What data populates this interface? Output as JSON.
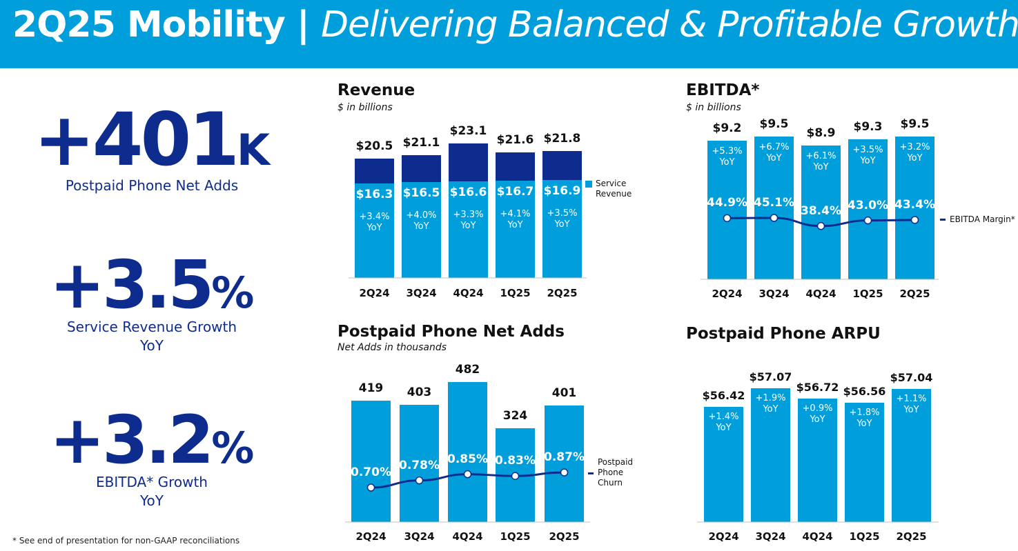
{
  "header": {
    "title_main": "2Q25 Mobility | ",
    "title_sub": "Delivering Balanced & Profitable Growth"
  },
  "kpis": [
    {
      "value": "+401",
      "unit": "K",
      "label": "Postpaid Phone Net Adds",
      "label2": ""
    },
    {
      "value": "+3.5",
      "unit": "%",
      "label": "Service Revenue Growth",
      "label2": "YoY"
    },
    {
      "value": "+3.2",
      "unit": "%",
      "label": "EBITDA* Growth",
      "label2": "YoY"
    }
  ],
  "footnote": "* See end of presentation for non-GAAP reconciliations",
  "colors": {
    "header": "#009FDB",
    "bar": "#009FDB",
    "dark": "#0E2C8E"
  },
  "chart_data": [
    {
      "type": "bar",
      "title": "Revenue",
      "subtitle": "$ in billions",
      "categories": [
        "2Q24",
        "3Q24",
        "4Q24",
        "1Q25",
        "2Q25"
      ],
      "series": [
        {
          "name": "Service Revenue",
          "values": [
            16.3,
            16.5,
            16.6,
            16.7,
            16.9
          ]
        },
        {
          "name": "",
          "values": [
            4.2,
            4.6,
            6.5,
            4.9,
            4.9
          ]
        }
      ],
      "totals": [
        20.5,
        21.1,
        23.1,
        21.6,
        21.8
      ],
      "total_labels": [
        "$20.5",
        "$21.1",
        "$23.1",
        "$21.6",
        "$21.8"
      ],
      "service_labels": [
        "$16.3",
        "$16.5",
        "$16.6",
        "$16.7",
        "$16.9"
      ],
      "yoy_labels": [
        "+3.4%",
        "+4.0%",
        "+3.3%",
        "+4.1%",
        "+3.5%"
      ],
      "yoy_suffix": "YoY",
      "legend": [
        "Service",
        "Revenue"
      ]
    },
    {
      "type": "bar",
      "title": "EBITDA*",
      "subtitle": "$ in billions",
      "categories": [
        "2Q24",
        "3Q24",
        "4Q24",
        "1Q25",
        "2Q25"
      ],
      "values": [
        9.2,
        9.5,
        8.9,
        9.3,
        9.5
      ],
      "value_labels": [
        "$9.2",
        "$9.5",
        "$8.9",
        "$9.3",
        "$9.5"
      ],
      "yoy_labels": [
        "+5.3%",
        "+6.7%",
        "+6.1%",
        "+3.5%",
        "+3.2%"
      ],
      "yoy_suffix": "YoY",
      "line": {
        "name": "EBITDA Margin*",
        "values": [
          44.9,
          45.1,
          38.4,
          43.0,
          43.4
        ],
        "labels": [
          "44.9%",
          "45.1%",
          "38.4%",
          "43.0%",
          "43.4%"
        ]
      }
    },
    {
      "type": "bar",
      "title": "Postpaid Phone Net Adds",
      "subtitle": "Net Adds in thousands",
      "categories": [
        "2Q24",
        "3Q24",
        "4Q24",
        "1Q25",
        "2Q25"
      ],
      "values": [
        419,
        403,
        482,
        324,
        401
      ],
      "value_labels": [
        "419",
        "403",
        "482",
        "324",
        "401"
      ],
      "line": {
        "name": "Postpaid Phone Churn",
        "values": [
          0.7,
          0.78,
          0.85,
          0.83,
          0.87
        ],
        "labels": [
          "0.70%",
          "0.78%",
          "0.85%",
          "0.83%",
          "0.87%"
        ]
      },
      "legend": [
        "Postpaid",
        "Phone",
        "Churn"
      ]
    },
    {
      "type": "bar",
      "title": "Postpaid Phone ARPU",
      "subtitle": "",
      "categories": [
        "2Q24",
        "3Q24",
        "4Q24",
        "1Q25",
        "2Q25"
      ],
      "values": [
        56.42,
        57.07,
        56.72,
        56.56,
        57.04
      ],
      "value_labels": [
        "$56.42",
        "$57.07",
        "$56.72",
        "$56.56",
        "$57.04"
      ],
      "yoy_labels": [
        "+1.4%",
        "+1.9%",
        "+0.9%",
        "+1.8%",
        "+1.1%"
      ],
      "yoy_suffix": "YoY"
    }
  ]
}
